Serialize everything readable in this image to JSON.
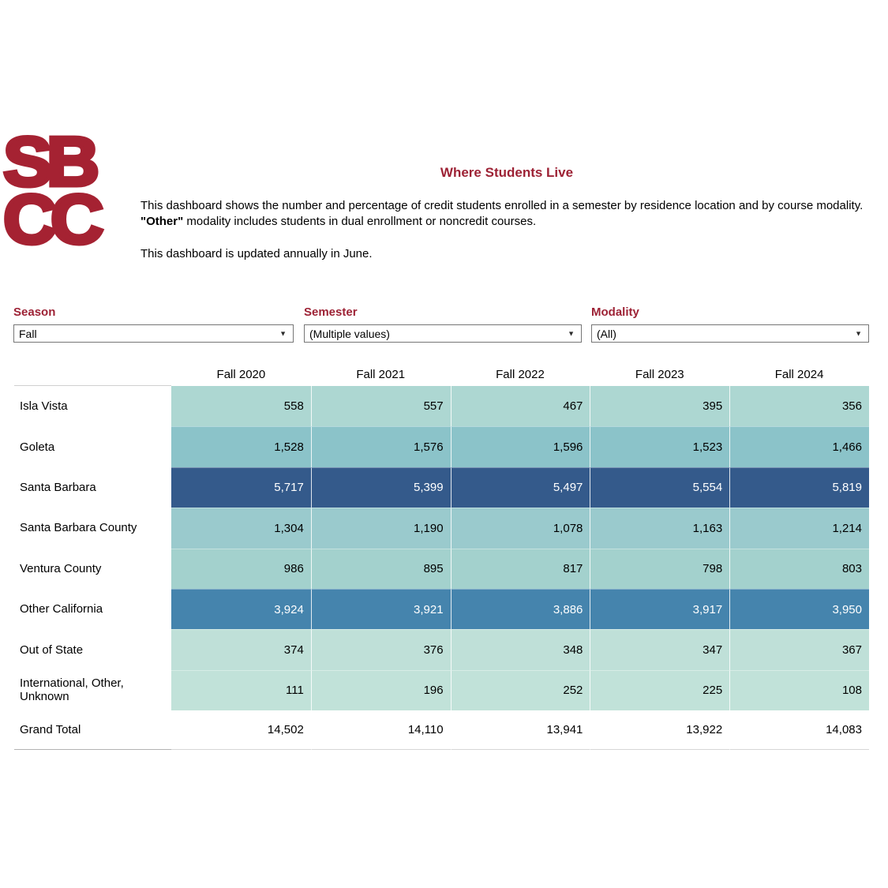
{
  "theme": {
    "brand_red": "#A52232",
    "heading_maroon": "#9D2235",
    "dropdown_border": "#767676",
    "dark_cell_text": "#FFFFFF",
    "light_cell_text": "#000000"
  },
  "logo": {
    "line1": "SB",
    "line2": "CC"
  },
  "header": {
    "title": "Where Students Live",
    "description_part1": "This dashboard shows the number and percentage of credit students enrolled in a semester by residence location and by course modality.  ",
    "description_bold": "\"Other\"",
    "description_part2": " modality includes students in dual enrollment or noncredit courses.",
    "update_note": "This dashboard is updated annually in June."
  },
  "filters": [
    {
      "label": "Season",
      "value": "Fall"
    },
    {
      "label": "Semester",
      "value": "(Multiple values)"
    },
    {
      "label": "Modality",
      "value": "(All)"
    }
  ],
  "chart_data": {
    "type": "table",
    "title": "Where Students Live",
    "columns": [
      "Fall 2020",
      "Fall 2021",
      "Fall 2022",
      "Fall 2023",
      "Fall 2024"
    ],
    "rows": [
      {
        "label": "Isla Vista",
        "values": [
          558,
          557,
          467,
          395,
          356
        ],
        "display": [
          "558",
          "557",
          "467",
          "395",
          "356"
        ],
        "bg": "#ADD7D2",
        "text_color": "#000000"
      },
      {
        "label": "Goleta",
        "values": [
          1528,
          1576,
          1596,
          1523,
          1466
        ],
        "display": [
          "1,528",
          "1,576",
          "1,596",
          "1,523",
          "1,466"
        ],
        "bg": "#8BC3C9",
        "text_color": "#000000"
      },
      {
        "label": "Santa Barbara",
        "values": [
          5717,
          5399,
          5497,
          5554,
          5819
        ],
        "display": [
          "5,717",
          "5,399",
          "5,497",
          "5,554",
          "5,819"
        ],
        "bg": "#345A8B",
        "text_color": "#FFFFFF"
      },
      {
        "label": "Santa Barbara County",
        "values": [
          1304,
          1190,
          1078,
          1163,
          1214
        ],
        "display": [
          "1,304",
          "1,190",
          "1,078",
          "1,163",
          "1,214"
        ],
        "bg": "#9ACACD",
        "text_color": "#000000"
      },
      {
        "label": "Ventura County",
        "values": [
          986,
          895,
          817,
          798,
          803
        ],
        "display": [
          "986",
          "895",
          "817",
          "798",
          "803"
        ],
        "bg": "#A3D1CD",
        "text_color": "#000000"
      },
      {
        "label": "Other California",
        "values": [
          3924,
          3921,
          3886,
          3917,
          3950
        ],
        "display": [
          "3,924",
          "3,921",
          "3,886",
          "3,917",
          "3,950"
        ],
        "bg": "#4584AD",
        "text_color": "#FFFFFF"
      },
      {
        "label": "Out of State",
        "values": [
          374,
          376,
          348,
          347,
          367
        ],
        "display": [
          "374",
          "376",
          "348",
          "347",
          "367"
        ],
        "bg": "#BFE0D8",
        "text_color": "#000000"
      },
      {
        "label": "International, Other, Unknown",
        "values": [
          111,
          196,
          252,
          225,
          108
        ],
        "display": [
          "111",
          "196",
          "252",
          "225",
          "108"
        ],
        "bg": "#C1E2D9",
        "text_color": "#000000"
      },
      {
        "label": "Grand Total",
        "values": [
          14502,
          14110,
          13941,
          13922,
          14083
        ],
        "display": [
          "14,502",
          "14,110",
          "13,941",
          "13,922",
          "14,083"
        ],
        "bg": "#FFFFFF",
        "text_color": "#000000"
      }
    ]
  }
}
